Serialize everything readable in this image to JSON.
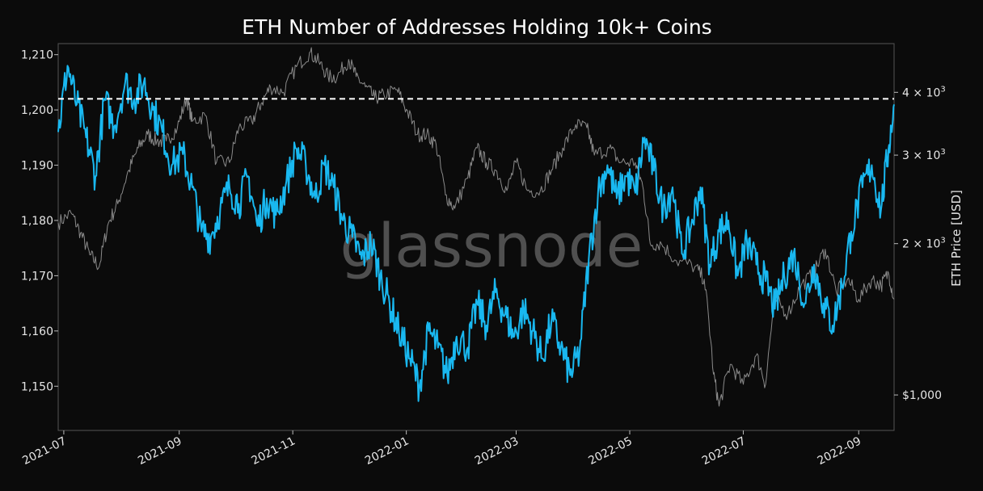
{
  "chart_data": {
    "type": "line",
    "title": "ETH Number of Addresses Holding 10k+ Coins",
    "ylabel_left": "",
    "ylabel_right": "ETH Price [USD]",
    "watermark": "glassnode",
    "x_range": [
      "2021-06-28",
      "2022-09-20"
    ],
    "ylim_left": [
      1142,
      1212
    ],
    "ylim_right_log": [
      850,
      5000
    ],
    "yscale_right": "log",
    "x_ticks": [
      "2021-07",
      "2021-09",
      "2021-11",
      "2022-01",
      "2022-03",
      "2022-05",
      "2022-07",
      "2022-09"
    ],
    "y_ticks_left": [
      "1,210",
      "1,200",
      "1,190",
      "1,180",
      "1,170",
      "1,160",
      "1,150"
    ],
    "y_ticks_left_values": [
      1210,
      1200,
      1190,
      1180,
      1170,
      1160,
      1150
    ],
    "y_ticks_right": [
      {
        "value": 4000,
        "base": "4",
        "exp": "3"
      },
      {
        "value": 3000,
        "base": "3",
        "exp": "3"
      },
      {
        "value": 2000,
        "base": "2",
        "exp": "3"
      },
      {
        "value": 1000,
        "label": "$1,000"
      }
    ],
    "reference_line": {
      "value": 1202,
      "style": "dashed",
      "color": "#ffffff"
    },
    "series": [
      {
        "axis": "left",
        "color": "#19b8f0",
        "points": [
          [
            "2021-06-28",
            1196
          ],
          [
            "2021-07-03",
            1208
          ],
          [
            "2021-07-08",
            1201
          ],
          [
            "2021-07-13",
            1195
          ],
          [
            "2021-07-18",
            1188
          ],
          [
            "2021-07-23",
            1202
          ],
          [
            "2021-07-28",
            1197
          ],
          [
            "2021-08-03",
            1205
          ],
          [
            "2021-08-08",
            1202
          ],
          [
            "2021-08-13",
            1205
          ],
          [
            "2021-08-18",
            1200
          ],
          [
            "2021-08-23",
            1196
          ],
          [
            "2021-08-28",
            1190
          ],
          [
            "2021-09-03",
            1192
          ],
          [
            "2021-09-08",
            1186
          ],
          [
            "2021-09-13",
            1178
          ],
          [
            "2021-09-18",
            1177
          ],
          [
            "2021-09-23",
            1182
          ],
          [
            "2021-09-28",
            1186
          ],
          [
            "2021-10-03",
            1183
          ],
          [
            "2021-10-08",
            1188
          ],
          [
            "2021-10-13",
            1179
          ],
          [
            "2021-10-18",
            1184
          ],
          [
            "2021-10-23",
            1181
          ],
          [
            "2021-10-28",
            1186
          ],
          [
            "2021-11-03",
            1193
          ],
          [
            "2021-11-08",
            1190
          ],
          [
            "2021-11-13",
            1184
          ],
          [
            "2021-11-18",
            1190
          ],
          [
            "2021-11-23",
            1186
          ],
          [
            "2021-11-28",
            1180
          ],
          [
            "2021-12-03",
            1177
          ],
          [
            "2021-12-08",
            1173
          ],
          [
            "2021-12-13",
            1176
          ],
          [
            "2021-12-18",
            1170
          ],
          [
            "2021-12-23",
            1165
          ],
          [
            "2021-12-28",
            1160
          ],
          [
            "2022-01-03",
            1155
          ],
          [
            "2022-01-08",
            1150
          ],
          [
            "2022-01-13",
            1160
          ],
          [
            "2022-01-18",
            1157
          ],
          [
            "2022-01-23",
            1152
          ],
          [
            "2022-01-28",
            1159
          ],
          [
            "2022-02-03",
            1157
          ],
          [
            "2022-02-08",
            1165
          ],
          [
            "2022-02-13",
            1161
          ],
          [
            "2022-02-18",
            1167
          ],
          [
            "2022-02-23",
            1163
          ],
          [
            "2022-02-28",
            1159
          ],
          [
            "2022-03-05",
            1164
          ],
          [
            "2022-03-10",
            1160
          ],
          [
            "2022-03-15",
            1155
          ],
          [
            "2022-03-20",
            1162
          ],
          [
            "2022-03-25",
            1157
          ],
          [
            "2022-03-30",
            1152
          ],
          [
            "2022-04-04",
            1156
          ],
          [
            "2022-04-09",
            1173
          ],
          [
            "2022-04-14",
            1185
          ],
          [
            "2022-04-19",
            1190
          ],
          [
            "2022-04-24",
            1184
          ],
          [
            "2022-04-29",
            1188
          ],
          [
            "2022-05-04",
            1185
          ],
          [
            "2022-05-09",
            1195
          ],
          [
            "2022-05-14",
            1189
          ],
          [
            "2022-05-19",
            1182
          ],
          [
            "2022-05-24",
            1186
          ],
          [
            "2022-05-29",
            1174
          ],
          [
            "2022-06-03",
            1179
          ],
          [
            "2022-06-08",
            1186
          ],
          [
            "2022-06-13",
            1172
          ],
          [
            "2022-06-18",
            1178
          ],
          [
            "2022-06-23",
            1180
          ],
          [
            "2022-06-28",
            1170
          ],
          [
            "2022-07-03",
            1176
          ],
          [
            "2022-07-08",
            1172
          ],
          [
            "2022-07-13",
            1169
          ],
          [
            "2022-07-18",
            1164
          ],
          [
            "2022-07-23",
            1170
          ],
          [
            "2022-07-28",
            1174
          ],
          [
            "2022-08-03",
            1165
          ],
          [
            "2022-08-08",
            1172
          ],
          [
            "2022-08-13",
            1165
          ],
          [
            "2022-08-18",
            1161
          ],
          [
            "2022-08-23",
            1168
          ],
          [
            "2022-08-28",
            1178
          ],
          [
            "2022-09-03",
            1186
          ],
          [
            "2022-09-08",
            1190
          ],
          [
            "2022-09-13",
            1182
          ],
          [
            "2022-09-17",
            1193
          ],
          [
            "2022-09-20",
            1201
          ]
        ]
      },
      {
        "axis": "right",
        "color": "#8a8a8a",
        "points": [
          [
            "2021-06-28",
            2200
          ],
          [
            "2021-07-05",
            2300
          ],
          [
            "2021-07-10",
            2100
          ],
          [
            "2021-07-15",
            1900
          ],
          [
            "2021-07-20",
            1800
          ],
          [
            "2021-07-25",
            2200
          ],
          [
            "2021-07-30",
            2400
          ],
          [
            "2021-08-05",
            2800
          ],
          [
            "2021-08-10",
            3100
          ],
          [
            "2021-08-15",
            3300
          ],
          [
            "2021-08-20",
            3200
          ],
          [
            "2021-08-25",
            3200
          ],
          [
            "2021-08-31",
            3400
          ],
          [
            "2021-09-05",
            3900
          ],
          [
            "2021-09-08",
            3500
          ],
          [
            "2021-09-15",
            3600
          ],
          [
            "2021-09-21",
            2900
          ],
          [
            "2021-09-28",
            2900
          ],
          [
            "2021-10-03",
            3400
          ],
          [
            "2021-10-10",
            3500
          ],
          [
            "2021-10-15",
            3800
          ],
          [
            "2021-10-20",
            4100
          ],
          [
            "2021-10-27",
            4000
          ],
          [
            "2021-11-03",
            4500
          ],
          [
            "2021-11-10",
            4800
          ],
          [
            "2021-11-15",
            4600
          ],
          [
            "2021-11-20",
            4300
          ],
          [
            "2021-11-25",
            4300
          ],
          [
            "2021-12-01",
            4650
          ],
          [
            "2021-12-05",
            4300
          ],
          [
            "2021-12-10",
            4100
          ],
          [
            "2021-12-15",
            3900
          ],
          [
            "2021-12-20",
            3950
          ],
          [
            "2021-12-27",
            4050
          ],
          [
            "2022-01-01",
            3700
          ],
          [
            "2022-01-07",
            3300
          ],
          [
            "2022-01-12",
            3300
          ],
          [
            "2022-01-17",
            3150
          ],
          [
            "2022-01-22",
            2500
          ],
          [
            "2022-01-27",
            2350
          ],
          [
            "2022-02-03",
            2700
          ],
          [
            "2022-02-08",
            3100
          ],
          [
            "2022-02-13",
            2900
          ],
          [
            "2022-02-18",
            2800
          ],
          [
            "2022-02-24",
            2550
          ],
          [
            "2022-03-01",
            2900
          ],
          [
            "2022-03-07",
            2550
          ],
          [
            "2022-03-14",
            2550
          ],
          [
            "2022-03-20",
            2800
          ],
          [
            "2022-03-26",
            3100
          ],
          [
            "2022-04-02",
            3450
          ],
          [
            "2022-04-08",
            3400
          ],
          [
            "2022-04-12",
            3000
          ],
          [
            "2022-04-20",
            3100
          ],
          [
            "2022-04-26",
            2900
          ],
          [
            "2022-05-04",
            2900
          ],
          [
            "2022-05-08",
            2600
          ],
          [
            "2022-05-12",
            2000
          ],
          [
            "2022-05-18",
            2000
          ],
          [
            "2022-05-26",
            1850
          ],
          [
            "2022-06-05",
            1800
          ],
          [
            "2022-06-10",
            1700
          ],
          [
            "2022-06-15",
            1100
          ],
          [
            "2022-06-18",
            950
          ],
          [
            "2022-06-24",
            1150
          ],
          [
            "2022-07-01",
            1050
          ],
          [
            "2022-07-08",
            1200
          ],
          [
            "2022-07-13",
            1050
          ],
          [
            "2022-07-18",
            1550
          ],
          [
            "2022-07-25",
            1450
          ],
          [
            "2022-08-01",
            1650
          ],
          [
            "2022-08-08",
            1750
          ],
          [
            "2022-08-14",
            1950
          ],
          [
            "2022-08-20",
            1600
          ],
          [
            "2022-08-26",
            1700
          ],
          [
            "2022-09-01",
            1550
          ],
          [
            "2022-09-08",
            1700
          ],
          [
            "2022-09-13",
            1650
          ],
          [
            "2022-09-17",
            1750
          ],
          [
            "2022-09-20",
            1550
          ]
        ]
      }
    ]
  }
}
